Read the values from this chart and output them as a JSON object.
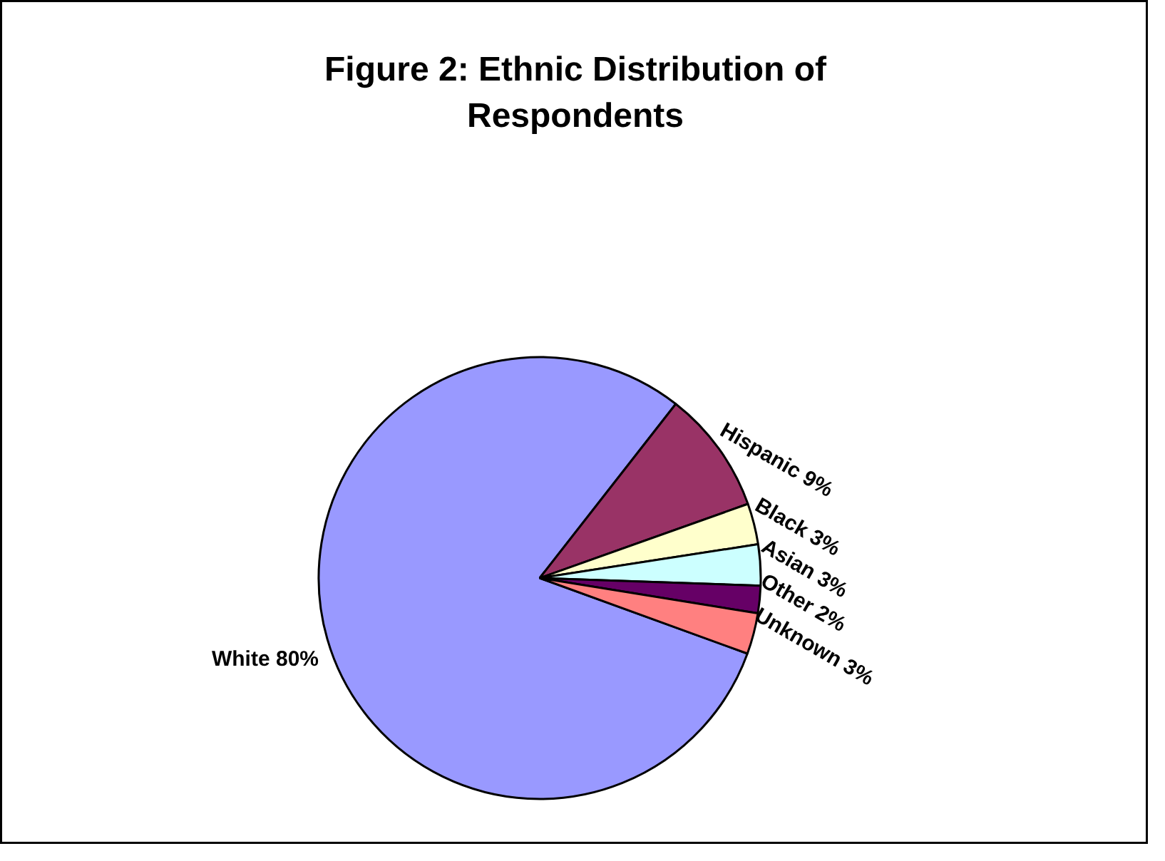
{
  "chart_data": {
    "type": "pie",
    "title": "Figure 2: Ethnic Distribution of\nRespondents",
    "categories": [
      "White 80%",
      "Hispanic 9%",
      "Black 3%",
      "Asian 3%",
      "Other 2%",
      "Unknown 3%"
    ],
    "values": [
      80,
      9,
      3,
      3,
      2,
      3
    ],
    "colors": [
      "#9999ff",
      "#993366",
      "#ffffcc",
      "#ccffff",
      "#660066",
      "#ff8080"
    ]
  }
}
